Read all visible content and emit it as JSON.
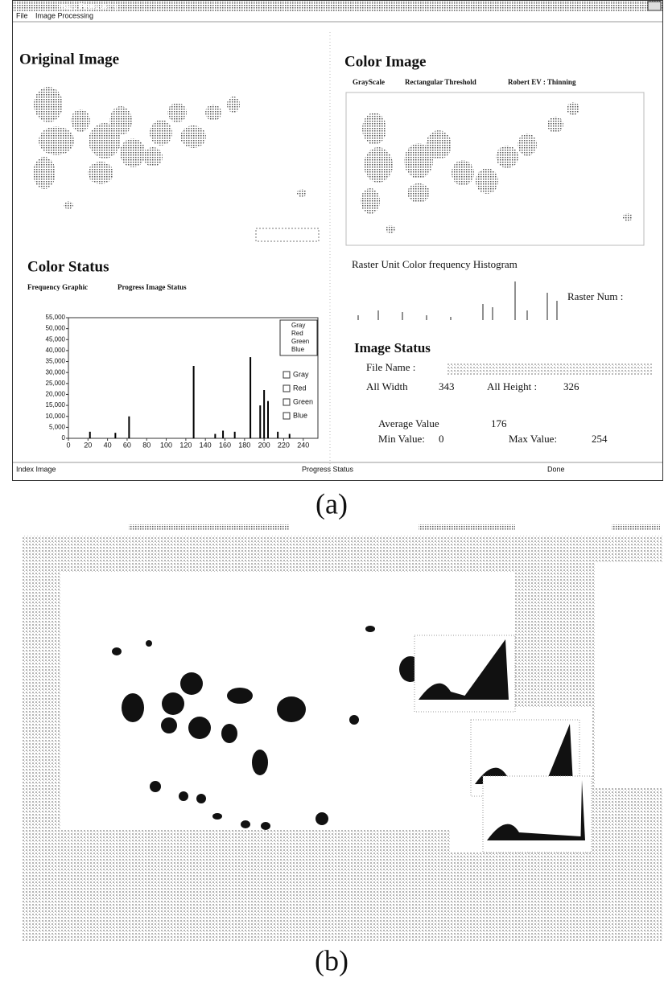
{
  "panel_a": {
    "window_title": "Image Processing",
    "menu": [
      "File",
      "Image Processing"
    ],
    "original_image": {
      "title": "Original Image"
    },
    "color_image": {
      "title": "Color Image",
      "toolbar": [
        "GrayScale",
        "Rectangular Threshold",
        "Robert EV : Thinning"
      ]
    },
    "color_status": {
      "title": "Color Status",
      "tabs": [
        "Frequency Graphic",
        "Progress Image Status"
      ],
      "chart": {
        "type": "bar",
        "xlim": [
          0,
          255
        ],
        "ylim": [
          0,
          55000
        ],
        "yticks": [
          0,
          {
            "value": 5000,
            "label": "5,000"
          },
          {
            "value": 10000,
            "label": "10,000"
          },
          {
            "value": 15000,
            "label": "15,000"
          },
          {
            "value": 20000,
            "label": "20,000"
          },
          {
            "value": 25000,
            "label": "25,000"
          },
          {
            "value": 30000,
            "label": "30,000"
          },
          {
            "value": 35000,
            "label": "35,000"
          },
          {
            "value": 40000,
            "label": "40,000"
          },
          {
            "value": 45000,
            "label": "45,000"
          },
          {
            "value": 50000,
            "label": "50,000"
          },
          {
            "value": 55000,
            "label": "55,000"
          }
        ],
        "xticks": [
          0,
          20,
          40,
          60,
          80,
          100,
          120,
          140,
          160,
          180,
          200,
          220,
          240
        ],
        "x": [
          22,
          48,
          62,
          128,
          150,
          158,
          170,
          186,
          196,
          200,
          204,
          214,
          226
        ],
        "values": [
          3000,
          2500,
          10000,
          33000,
          2000,
          3500,
          3000,
          37000,
          15000,
          22000,
          17000,
          3000,
          2000
        ],
        "color": "#000000",
        "legend": [
          "Gray",
          "Red",
          "Green",
          "Blue"
        ],
        "checkboxes": [
          "Gray",
          "Red",
          "Green",
          "Blue"
        ]
      }
    },
    "raster": {
      "title": "Raster Unit Color frequency  Histogram",
      "num_label": "Raster Num :"
    },
    "image_status": {
      "title": "Image Status",
      "file_name_label": "File Name :",
      "width_label": "All Width",
      "width": "343",
      "height_label": "All Height :",
      "height": "326",
      "average_label": "Average Value",
      "average": "176",
      "min_label": "Min Value:",
      "min": "0",
      "max_label": "Max Value:",
      "max": "254"
    },
    "status_bar": [
      "Index Image",
      "Progress Status",
      "Done"
    ]
  },
  "captions": [
    "(a)",
    "(b)"
  ]
}
